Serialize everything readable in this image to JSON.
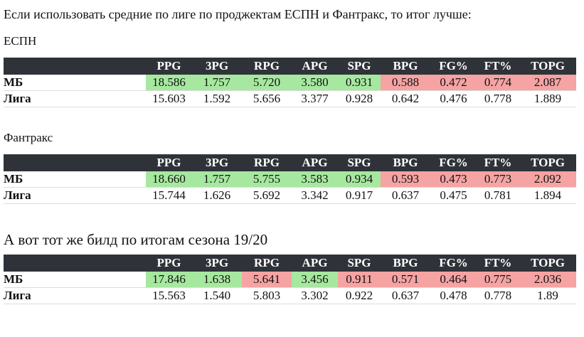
{
  "intro": "Если использовать средние по лиге по проджектам ЕСПН и Фантракс, то итог лучше:",
  "sections": [
    {
      "title": "ЕСПН",
      "table": {
        "header": [
          "PPG",
          "3PG",
          "RPG",
          "APG",
          "SPG",
          "BPG",
          "FG%",
          "FT%",
          "TOPG"
        ],
        "rows": [
          {
            "label": "МБ",
            "cells": [
              "18.586",
              "1.757",
              "5.720",
              "3.580",
              "0.931",
              "0.588",
              "0.472",
              "0.774",
              "2.087"
            ],
            "colors": [
              "green",
              "green",
              "green",
              "green",
              "green",
              "red",
              "red",
              "red",
              "red"
            ]
          },
          {
            "label": "Лига",
            "cells": [
              "15.603",
              "1.592",
              "5.656",
              "3.377",
              "0.928",
              "0.642",
              "0.476",
              "0.778",
              "1.889"
            ]
          }
        ]
      }
    },
    {
      "title": "Фантракс",
      "table": {
        "header": [
          "PPG",
          "3PG",
          "RPG",
          "APG",
          "SPG",
          "BPG",
          "FG%",
          "FT%",
          "TOPG"
        ],
        "rows": [
          {
            "label": "МБ",
            "cells": [
              "18.660",
              "1.757",
              "5.755",
              "3.583",
              "0.934",
              "0.593",
              "0.473",
              "0.773",
              "2.092"
            ],
            "colors": [
              "green",
              "green",
              "green",
              "green",
              "green",
              "red",
              "red",
              "red",
              "red"
            ]
          },
          {
            "label": "Лига",
            "cells": [
              "15.744",
              "1.626",
              "5.692",
              "3.342",
              "0.917",
              "0.637",
              "0.475",
              "0.781",
              "1.894"
            ]
          }
        ]
      }
    },
    {
      "title": "А вот тот же билд по итогам сезона 19/20",
      "table": {
        "header": [
          "PPG",
          "3PG",
          "RPG",
          "APG",
          "SPG",
          "BPG",
          "FG%",
          "FT%",
          "TOPG"
        ],
        "rows": [
          {
            "label": "МБ",
            "cells": [
              "17.846",
              "1.638",
              "5.641",
              "3.456",
              "0.911",
              "0.571",
              "0.464",
              "0.775",
              "2.036"
            ],
            "colors": [
              "green",
              "green",
              "red",
              "green",
              "red",
              "red",
              "red",
              "red",
              "red"
            ]
          },
          {
            "label": "Лига",
            "cells": [
              "15.563",
              "1.540",
              "5.803",
              "3.302",
              "0.922",
              "0.637",
              "0.478",
              "0.778",
              "1.89"
            ]
          }
        ]
      }
    }
  ]
}
